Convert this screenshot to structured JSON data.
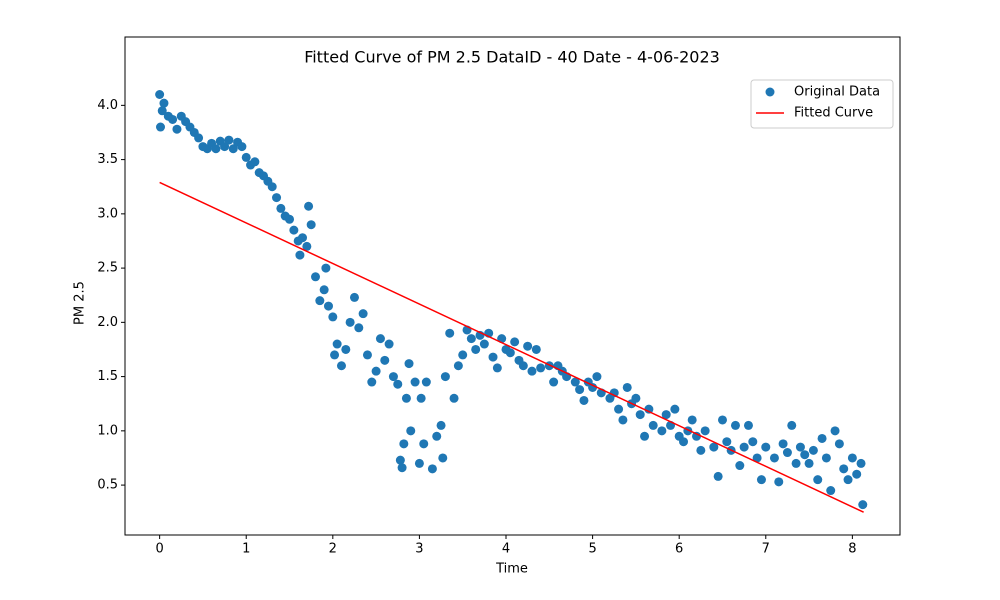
{
  "chart_data": {
    "type": "scatter",
    "title": "Fitted Curve of PM 2.5 DataID - 40 Date - 4-06-2023",
    "x_label": "Time",
    "y_label": "PM 2.5",
    "xlim": [
      -0.4,
      8.55
    ],
    "ylim": [
      0.04,
      4.63
    ],
    "xticks": [
      0,
      1,
      2,
      3,
      4,
      5,
      6,
      7,
      8
    ],
    "yticks": [
      0.5,
      {
        "value": 1.0,
        "label": "1.0"
      },
      1.5,
      {
        "value": 2.0,
        "label": "2.0"
      },
      2.5,
      {
        "value": 3.0,
        "label": "3.0"
      },
      3.5,
      {
        "value": 4.0,
        "label": "4.0"
      }
    ],
    "grid": false,
    "legend": "upper right",
    "series": [
      {
        "name": "Original Data",
        "type": "scatter",
        "color": "#1f77b4",
        "x": [
          0,
          0.01,
          0.03,
          0.05,
          0.1,
          0.15,
          0.2,
          0.25,
          0.3,
          0.35,
          0.4,
          0.45,
          0.5,
          0.55,
          0.6,
          0.65,
          0.7,
          0.75,
          0.8,
          0.85,
          0.9,
          0.95,
          1.0,
          1.05,
          1.1,
          1.15,
          1.2,
          1.25,
          1.3,
          1.35,
          1.4,
          1.45,
          1.5,
          1.55,
          1.6,
          1.62,
          1.65,
          1.7,
          1.72,
          1.75,
          1.8,
          1.85,
          1.9,
          1.92,
          1.95,
          2.0,
          2.02,
          2.05,
          2.1,
          2.15,
          2.2,
          2.25,
          2.3,
          2.35,
          2.4,
          2.45,
          2.5,
          2.55,
          2.6,
          2.65,
          2.7,
          2.75,
          2.78,
          2.8,
          2.82,
          2.85,
          2.88,
          2.9,
          2.95,
          3.0,
          3.02,
          3.05,
          3.08,
          3.15,
          3.2,
          3.25,
          3.27,
          3.3,
          3.35,
          3.4,
          3.45,
          3.5,
          3.55,
          3.6,
          3.65,
          3.7,
          3.75,
          3.8,
          3.85,
          3.9,
          3.95,
          4.0,
          4.05,
          4.1,
          4.15,
          4.2,
          4.25,
          4.3,
          4.35,
          4.4,
          4.5,
          4.55,
          4.6,
          4.65,
          4.7,
          4.8,
          4.85,
          4.9,
          4.95,
          5.0,
          5.05,
          5.1,
          5.2,
          5.25,
          5.3,
          5.35,
          5.4,
          5.45,
          5.5,
          5.55,
          5.6,
          5.65,
          5.7,
          5.8,
          5.85,
          5.9,
          5.95,
          6.0,
          6.05,
          6.1,
          6.15,
          6.2,
          6.25,
          6.3,
          6.4,
          6.45,
          6.5,
          6.55,
          6.6,
          6.65,
          6.7,
          6.75,
          6.8,
          6.85,
          6.9,
          6.95,
          7.0,
          7.1,
          7.15,
          7.2,
          7.25,
          7.3,
          7.35,
          7.4,
          7.45,
          7.5,
          7.55,
          7.6,
          7.65,
          7.7,
          7.75,
          7.8,
          7.85,
          7.9,
          7.95,
          8.0,
          8.05,
          8.1,
          8.12
        ],
        "values": [
          4.1,
          3.8,
          3.95,
          4.02,
          3.9,
          3.87,
          3.78,
          3.9,
          3.85,
          3.8,
          3.75,
          3.7,
          3.62,
          3.6,
          3.65,
          3.6,
          3.67,
          3.62,
          3.68,
          3.6,
          3.66,
          3.62,
          3.52,
          3.45,
          3.48,
          3.38,
          3.35,
          3.3,
          3.25,
          3.15,
          3.05,
          2.98,
          2.95,
          2.85,
          2.75,
          2.62,
          2.78,
          2.7,
          3.07,
          2.9,
          2.42,
          2.2,
          2.3,
          2.5,
          2.15,
          2.05,
          1.7,
          1.8,
          1.6,
          1.75,
          2.0,
          2.23,
          1.95,
          2.08,
          1.7,
          1.45,
          1.55,
          1.85,
          1.65,
          1.8,
          1.5,
          1.43,
          0.73,
          0.66,
          0.88,
          1.3,
          1.62,
          1.0,
          1.45,
          0.7,
          1.3,
          0.88,
          1.45,
          0.65,
          0.95,
          1.05,
          0.75,
          1.5,
          1.9,
          1.3,
          1.6,
          1.7,
          1.93,
          1.85,
          1.75,
          1.88,
          1.8,
          1.9,
          1.68,
          1.58,
          1.85,
          1.75,
          1.72,
          1.82,
          1.65,
          1.6,
          1.78,
          1.55,
          1.75,
          1.58,
          1.6,
          1.45,
          1.6,
          1.55,
          1.5,
          1.45,
          1.38,
          1.28,
          1.45,
          1.4,
          1.5,
          1.35,
          1.3,
          1.35,
          1.2,
          1.1,
          1.4,
          1.25,
          1.3,
          1.15,
          0.95,
          1.2,
          1.05,
          1.0,
          1.15,
          1.05,
          1.2,
          0.95,
          0.9,
          1.0,
          1.1,
          0.95,
          0.82,
          1.0,
          0.85,
          0.58,
          1.1,
          0.9,
          0.82,
          1.05,
          0.68,
          0.85,
          1.05,
          0.9,
          0.75,
          0.55,
          0.85,
          0.75,
          0.53,
          0.88,
          0.8,
          1.05,
          0.7,
          0.85,
          0.78,
          0.7,
          0.82,
          0.55,
          0.93,
          0.75,
          0.45,
          1.0,
          0.88,
          0.65,
          0.55,
          0.75,
          0.6,
          0.7,
          0.32
        ]
      },
      {
        "name": "Fitted Curve",
        "type": "line",
        "color": "#ff0000",
        "x": [
          0,
          8.13
        ],
        "values": [
          3.29,
          0.25
        ]
      }
    ]
  }
}
